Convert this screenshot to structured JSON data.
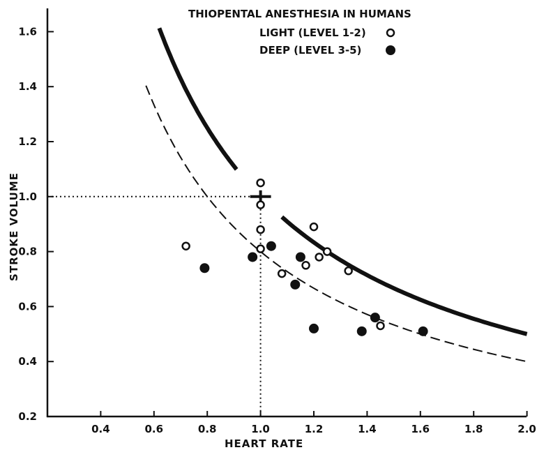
{
  "chart_data": {
    "type": "scatter",
    "title": "THIOPENTAL ANESTHESIA IN HUMANS",
    "xlabel": "HEART RATE",
    "ylabel": "STROKE VOLUME",
    "xlim": [
      0.2,
      2.0
    ],
    "ylim": [
      0.2,
      1.7
    ],
    "x_ticks": [
      "0.4",
      "0.6",
      "0.8",
      "1.0",
      "1.2",
      "1.4",
      "1.6",
      "1.8",
      "2.0"
    ],
    "y_ticks": [
      "0.2",
      "0.4",
      "0.6",
      "0.8",
      "1.0",
      "1.2",
      "1.4",
      "1.6"
    ],
    "grid": false,
    "legend_position": "top-right",
    "series": [
      {
        "name": "LIGHT (LEVEL 1-2)",
        "marker": "open-circle",
        "points": [
          [
            0.72,
            0.82
          ],
          [
            1.0,
            1.05
          ],
          [
            1.0,
            0.97
          ],
          [
            1.0,
            0.88
          ],
          [
            1.0,
            0.81
          ],
          [
            1.08,
            0.72
          ],
          [
            1.17,
            0.75
          ],
          [
            1.2,
            0.89
          ],
          [
            1.22,
            0.78
          ],
          [
            1.25,
            0.8
          ],
          [
            1.33,
            0.73
          ],
          [
            1.45,
            0.53
          ]
        ]
      },
      {
        "name": "DEEP (LEVEL 3-5)",
        "marker": "filled-circle",
        "points": [
          [
            0.79,
            0.74
          ],
          [
            0.97,
            0.78
          ],
          [
            1.04,
            0.82
          ],
          [
            1.13,
            0.68
          ],
          [
            1.15,
            0.78
          ],
          [
            1.2,
            0.52
          ],
          [
            1.38,
            0.51
          ],
          [
            1.43,
            0.56
          ],
          [
            1.61,
            0.51
          ]
        ]
      }
    ],
    "curves": [
      {
        "style": "thick-solid",
        "equation": "y = 1/x",
        "segments": [
          [
            0.62,
            0.91
          ],
          [
            1.08,
            2.0
          ]
        ]
      },
      {
        "style": "dashed",
        "equation": "y = 0.8/x",
        "segments": [
          [
            0.57,
            2.0
          ]
        ]
      }
    ],
    "reference_point": {
      "x": 1.0,
      "y": 1.0,
      "marker": "cross"
    },
    "reference_lines": "dotted lines from axes to (1.0, 1.0)"
  },
  "colors": {
    "ink": "#111111",
    "background": "#ffffff"
  }
}
